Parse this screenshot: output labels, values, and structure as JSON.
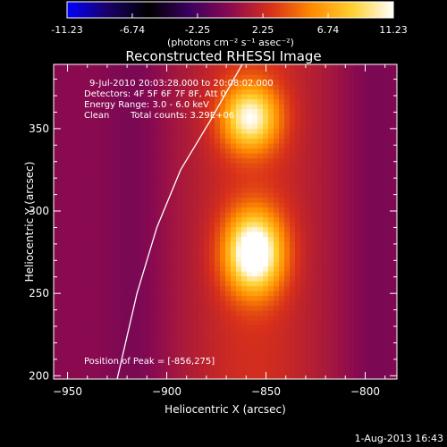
{
  "colorbar": {
    "tick_labels": [
      "-11.23",
      "-6.74",
      "-2.25",
      "2.25",
      "6.74",
      "11.23"
    ],
    "range": [
      -11.23,
      11.23
    ],
    "unit_label": "(photons cm⁻² s⁻¹ asec⁻²)",
    "colormap": [
      "#0000ff",
      "#1a0066",
      "#000000",
      "#3a0060",
      "#8a0a50",
      "#d8301a",
      "#ff8a00",
      "#ffd030",
      "#ffffff"
    ]
  },
  "chart_data": {
    "type": "heatmap",
    "title": "Reconstructed RHESSI Image",
    "xlabel": "Heliocentric X (arcsec)",
    "ylabel": "Heliocentric Y (arcsec)",
    "xlim": [
      -957,
      -784
    ],
    "ylim": [
      198,
      389
    ],
    "x_ticks": [
      -950,
      -900,
      -850,
      -800
    ],
    "y_ticks": [
      200,
      250,
      300,
      350
    ],
    "annotations": {
      "time_range": "9-Jul-2010 20:03:28.000 to 20:08:02.000",
      "detectors": "Detectors: 4F 5F 6F 7F 8F, Att 0",
      "energy": "Energy Range: 3.0 - 6.0 keV",
      "clean_label": "Clean",
      "total_counts": "Total counts: 3.29E+06",
      "peak": "Position of Peak = [-856,275]"
    },
    "sources": [
      {
        "x": -856,
        "y": 275,
        "peak": 11.23,
        "sx": 10,
        "sy": 17
      },
      {
        "x": -858,
        "y": 357,
        "peak": 8.6,
        "sx": 10,
        "sy": 14
      }
    ],
    "limb_curve": [
      [
        -925,
        198
      ],
      [
        -915,
        250
      ],
      [
        -905,
        290
      ],
      [
        -893,
        325
      ],
      [
        -878,
        355
      ],
      [
        -862,
        389
      ]
    ]
  },
  "footer": {
    "date": "1-Aug-2013 16:43"
  }
}
